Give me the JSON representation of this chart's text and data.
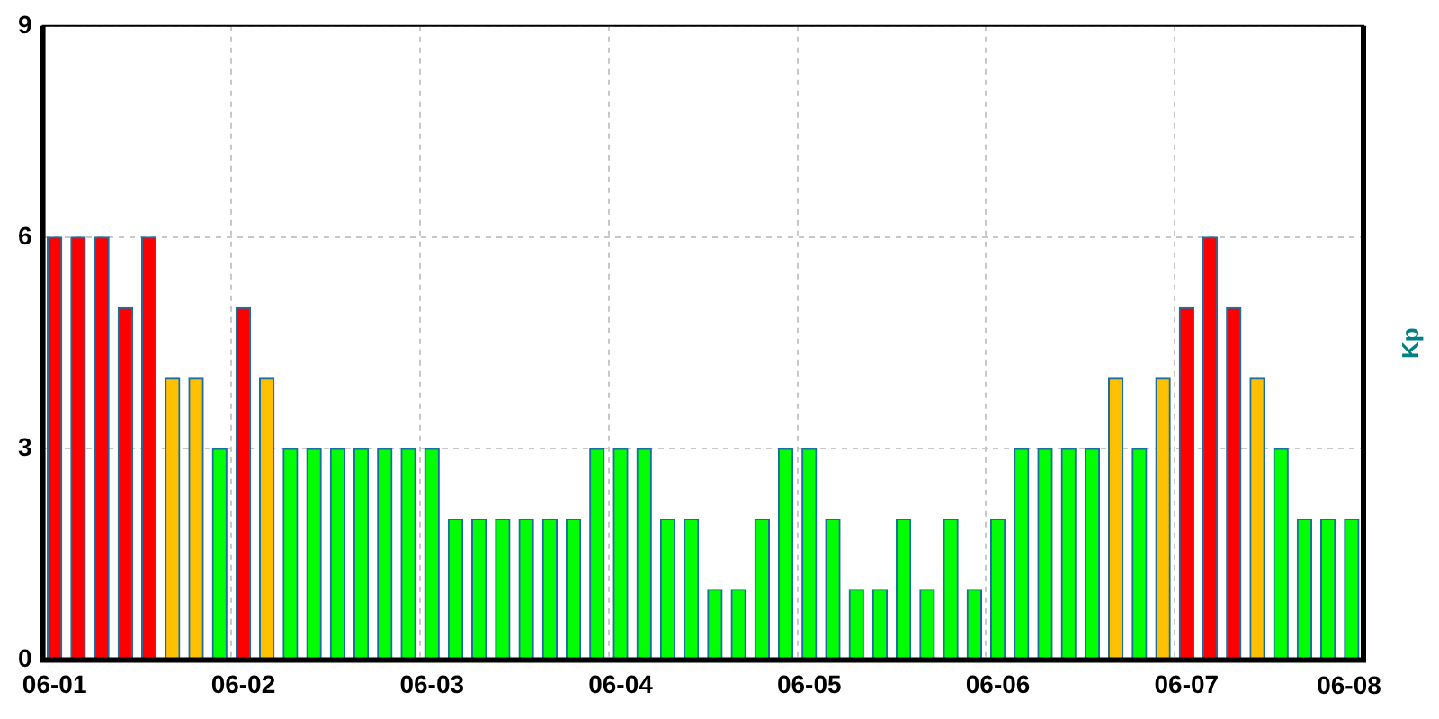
{
  "chart_data": {
    "type": "bar",
    "ylabel": "Kp",
    "categories": [
      "06-01",
      null,
      null,
      null,
      null,
      null,
      null,
      null,
      "06-02",
      null,
      null,
      null,
      null,
      null,
      null,
      null,
      "06-03",
      null,
      null,
      null,
      null,
      null,
      null,
      null,
      "06-04",
      null,
      null,
      null,
      null,
      null,
      null,
      null,
      "06-05",
      null,
      null,
      null,
      null,
      null,
      null,
      null,
      "06-06",
      null,
      null,
      null,
      null,
      null,
      null,
      null,
      "06-07",
      null,
      null,
      null,
      null,
      null,
      null,
      null
    ],
    "values": [
      6,
      6,
      6,
      5,
      6,
      4,
      4,
      3,
      5,
      4,
      3,
      3,
      3,
      3,
      3,
      3,
      3,
      2,
      2,
      2,
      2,
      2,
      2,
      3,
      3,
      3,
      2,
      2,
      1,
      1,
      2,
      3,
      3,
      2,
      1,
      1,
      2,
      1,
      2,
      1,
      2,
      3,
      3,
      3,
      3,
      4,
      3,
      4,
      5,
      6,
      5,
      4,
      3,
      2,
      2,
      2
    ],
    "colors": [
      "#ff0000",
      "#ff0000",
      "#ff0000",
      "#ff0000",
      "#ff0000",
      "#ffc000",
      "#ffc000",
      "#00ff00",
      "#ff0000",
      "#ffc000",
      "#00ff00",
      "#00ff00",
      "#00ff00",
      "#00ff00",
      "#00ff00",
      "#00ff00",
      "#00ff00",
      "#00ff00",
      "#00ff00",
      "#00ff00",
      "#00ff00",
      "#00ff00",
      "#00ff00",
      "#00ff00",
      "#00ff00",
      "#00ff00",
      "#00ff00",
      "#00ff00",
      "#00ff00",
      "#00ff00",
      "#00ff00",
      "#00ff00",
      "#00ff00",
      "#00ff00",
      "#00ff00",
      "#00ff00",
      "#00ff00",
      "#00ff00",
      "#00ff00",
      "#00ff00",
      "#00ff00",
      "#00ff00",
      "#00ff00",
      "#00ff00",
      "#00ff00",
      "#ffc000",
      "#00ff00",
      "#ffc000",
      "#ff0000",
      "#ff0000",
      "#ff0000",
      "#ffc000",
      "#00ff00",
      "#00ff00",
      "#00ff00",
      "#00ff00"
    ],
    "annotations": [
      "06-08"
    ],
    "ylim": [
      0,
      9
    ],
    "yticks": [
      0,
      3,
      6,
      9
    ],
    "grid": true,
    "legend": false
  }
}
